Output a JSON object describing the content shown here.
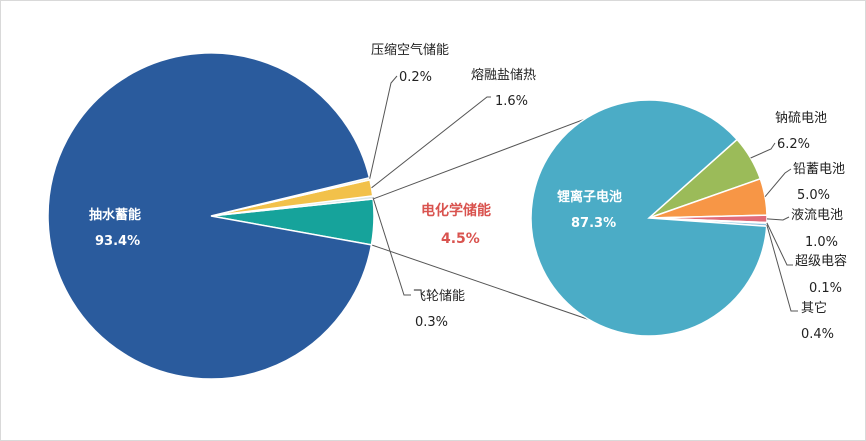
{
  "chart_data": {
    "type": "pie",
    "subtype": "pie-of-pie",
    "main_pie": {
      "slices": [
        {
          "label": "抽水蓄能",
          "value": 93.4,
          "value_label": "93.4%",
          "color": "#2a5b9d"
        },
        {
          "label": "电化学储能",
          "value": 4.5,
          "value_label": "4.5%",
          "color": "#16a39b"
        },
        {
          "label": "飞轮储能",
          "value": 0.3,
          "value_label": "0.3%",
          "color": "#d8e6e6"
        },
        {
          "label": "熔融盐储热",
          "value": 1.6,
          "value_label": "1.6%",
          "color": "#f2c14a"
        },
        {
          "label": "压缩空气储能",
          "value": 0.2,
          "value_label": "0.2%",
          "color": "#e6e0c0"
        }
      ]
    },
    "secondary_pie": {
      "breakdown_of": "电化学储能",
      "slices": [
        {
          "label": "锂离子电池",
          "value": 87.3,
          "value_label": "87.3%",
          "color": "#4bacc6"
        },
        {
          "label": "钠硫电池",
          "value": 6.2,
          "value_label": "6.2%",
          "color": "#9bbb59"
        },
        {
          "label": "铅蓄电池",
          "value": 5.0,
          "value_label": "5.0%",
          "color": "#f79646"
        },
        {
          "label": "液流电池",
          "value": 1.0,
          "value_label": "1.0%",
          "color": "#e06b78"
        },
        {
          "label": "超级电容",
          "value": 0.1,
          "value_label": "0.1%",
          "color": "#c9d9f0"
        },
        {
          "label": "其它",
          "value": 0.4,
          "value_label": "0.4%",
          "color": "#8fc3e0"
        }
      ]
    },
    "legend": "none"
  }
}
